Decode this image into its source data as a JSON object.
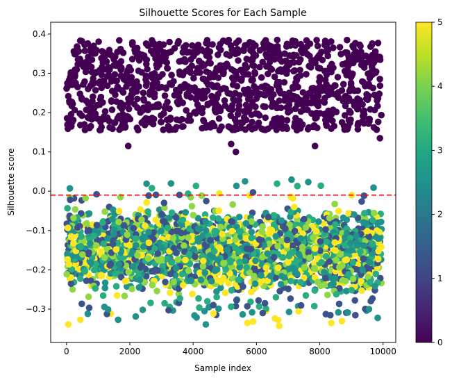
{
  "chart_data": {
    "type": "scatter",
    "title": "Silhouette Scores for Each Sample",
    "xlabel": "Sample index",
    "ylabel": "Silhouette score",
    "xlim": [
      -500,
      10400
    ],
    "ylim": [
      -0.385,
      0.43
    ],
    "xticks": [
      0,
      2000,
      4000,
      6000,
      8000,
      10000
    ],
    "xtick_labels": [
      "0",
      "2000",
      "4000",
      "6000",
      "8000",
      "10000"
    ],
    "yticks": [
      -0.3,
      -0.2,
      -0.1,
      0.0,
      0.1,
      0.2,
      0.3,
      0.4
    ],
    "ytick_labels": [
      "−0.3",
      "−0.2",
      "−0.1",
      "0.0",
      "0.1",
      "0.2",
      "0.3",
      "0.4"
    ],
    "grid": false,
    "reference_line": {
      "y": -0.01,
      "color": "#ff0000",
      "style": "dashed"
    },
    "colorbar": {
      "colormap": "viridis",
      "range": [
        0,
        5
      ],
      "ticks": [
        0,
        1,
        2,
        3,
        4,
        5
      ],
      "tick_labels": [
        "0",
        "1",
        "2",
        "3",
        "4",
        "5"
      ]
    },
    "series": [
      {
        "cluster": 0,
        "color": "#440154",
        "sample_index_range": [
          0,
          9950
        ],
        "score_range": [
          0.13,
          0.385
        ],
        "outliers": [
          {
            "x": 1950,
            "y": 0.115
          },
          {
            "x": 5200,
            "y": 0.12
          },
          {
            "x": 5350,
            "y": 0.1
          },
          {
            "x": 7850,
            "y": 0.115
          },
          {
            "x": 9900,
            "y": 0.135
          }
        ]
      },
      {
        "cluster": 1,
        "color": "#3b528b",
        "sample_index_range": [
          0,
          9950
        ],
        "score_range": [
          -0.32,
          -0.0
        ]
      },
      {
        "cluster": 2,
        "color": "#21918c",
        "sample_index_range": [
          0,
          9950
        ],
        "score_range": [
          -0.34,
          0.035
        ]
      },
      {
        "cluster": 3,
        "color": "#27ad81",
        "sample_index_range": [
          0,
          9950
        ],
        "score_range": [
          -0.3,
          0.02
        ]
      },
      {
        "cluster": 4,
        "color": "#8fd744",
        "sample_index_range": [
          0,
          9950
        ],
        "score_range": [
          -0.27,
          -0.01
        ]
      },
      {
        "cluster": 5,
        "color": "#fde725",
        "sample_index_range": [
          0,
          9950
        ],
        "score_range": [
          -0.345,
          0.0
        ]
      }
    ]
  }
}
